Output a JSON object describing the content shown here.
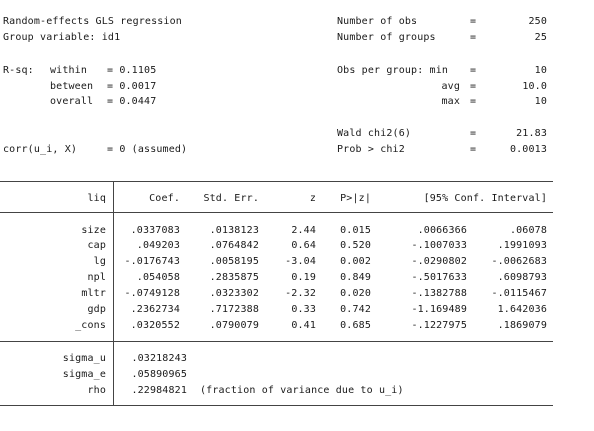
{
  "header": {
    "title": "Random-effects GLS regression",
    "group_var": "Group variable: id1",
    "rsq_label": "R-sq:",
    "within_label": "within",
    "within_val": "= 0.1105",
    "between_label": "between",
    "between_val": "= 0.0017",
    "overall_label": "overall",
    "overall_val": "= 0.0447",
    "corr": "corr(u_i, X)",
    "corr_val": "= 0 (assumed)",
    "nobs_label": "Number of obs",
    "nobs": "250",
    "ngroups_label": "Number of groups",
    "ngroups": "25",
    "obs_per_group_label": "Obs per group: min",
    "min": "10",
    "avg_label": "avg",
    "avg": "10.0",
    "max_label": "max",
    "max": "10",
    "wald_label": "Wald chi2(6)",
    "wald": "21.83",
    "prob_label": "Prob > chi2",
    "prob": "0.0013",
    "eq": "="
  },
  "table": {
    "columns": [
      "liq",
      "Coef.",
      "Std. Err.",
      "z",
      "P>|z|",
      "[95% Conf. Interval]"
    ],
    "rows": [
      {
        "var": "size",
        "coef": ".0337083",
        "se": ".0138123",
        "z": "2.44",
        "p": "0.015",
        "lo": ".0066366",
        "hi": ".06078"
      },
      {
        "var": "cap",
        "coef": ".049203",
        "se": ".0764842",
        "z": "0.64",
        "p": "0.520",
        "lo": "-.1007033",
        "hi": ".1991093"
      },
      {
        "var": "lg",
        "coef": "-.0176743",
        "se": ".0058195",
        "z": "-3.04",
        "p": "0.002",
        "lo": "-.0290802",
        "hi": "-.0062683"
      },
      {
        "var": "npl",
        "coef": ".054058",
        "se": ".2835875",
        "z": "0.19",
        "p": "0.849",
        "lo": "-.5017633",
        "hi": ".6098793"
      },
      {
        "var": "mltr",
        "coef": "-.0749128",
        "se": ".0323302",
        "z": "-2.32",
        "p": "0.020",
        "lo": "-.1382788",
        "hi": "-.0115467"
      },
      {
        "var": "gdp",
        "coef": ".2362734",
        "se": ".7172388",
        "z": "0.33",
        "p": "0.742",
        "lo": "-1.169489",
        "hi": "1.642036"
      },
      {
        "var": "_cons",
        "coef": ".0320552",
        "se": ".0790079",
        "z": "0.41",
        "p": "0.685",
        "lo": "-.1227975",
        "hi": ".1869079"
      }
    ],
    "stats": [
      {
        "var": "sigma_u",
        "val": ".03218243"
      },
      {
        "var": "sigma_e",
        "val": ".05890965"
      },
      {
        "var": "rho",
        "val": ".22984821",
        "note": "(fraction of variance due to u_i)"
      }
    ]
  }
}
